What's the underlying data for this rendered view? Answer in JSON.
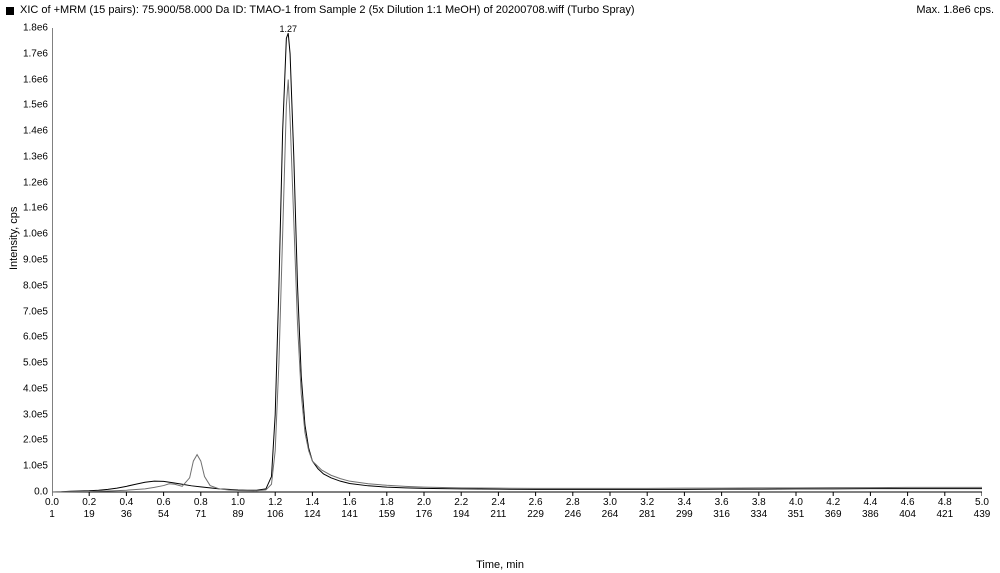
{
  "header": {
    "title": "XIC of +MRM (15 pairs): 75.900/58.000 Da ID: TMAO-1 from Sample 2 (5x Dilution 1:1 MeOH) of 20200708.wiff (Turbo Spray)",
    "max_label": "Max. 1.8e6 cps."
  },
  "axes": {
    "ylabel": "Intensity, cps",
    "xlabel": "Time, min",
    "xlim": [
      0.0,
      5.0
    ],
    "ylim": [
      0,
      1800000.0
    ],
    "yticks": [
      {
        "v": 0,
        "label": "0.0"
      },
      {
        "v": 100000.0,
        "label": "1.0e5"
      },
      {
        "v": 200000.0,
        "label": "2.0e5"
      },
      {
        "v": 300000.0,
        "label": "3.0e5"
      },
      {
        "v": 400000.0,
        "label": "4.0e5"
      },
      {
        "v": 500000.0,
        "label": "5.0e5"
      },
      {
        "v": 600000.0,
        "label": "6.0e5"
      },
      {
        "v": 700000.0,
        "label": "7.0e5"
      },
      {
        "v": 800000.0,
        "label": "8.0e5"
      },
      {
        "v": 900000.0,
        "label": "9.0e5"
      },
      {
        "v": 1000000.0,
        "label": "1.0e6"
      },
      {
        "v": 1100000.0,
        "label": "1.1e6"
      },
      {
        "v": 1200000.0,
        "label": "1.2e6"
      },
      {
        "v": 1300000.0,
        "label": "1.3e6"
      },
      {
        "v": 1400000.0,
        "label": "1.4e6"
      },
      {
        "v": 1500000.0,
        "label": "1.5e6"
      },
      {
        "v": 1600000.0,
        "label": "1.6e6"
      },
      {
        "v": 1700000.0,
        "label": "1.7e6"
      },
      {
        "v": 1800000.0,
        "label": "1.8e6"
      }
    ],
    "xticks": [
      {
        "v": 0.0,
        "top": "0.0",
        "bot": "1"
      },
      {
        "v": 0.2,
        "top": "0.2",
        "bot": "19"
      },
      {
        "v": 0.4,
        "top": "0.4",
        "bot": "36"
      },
      {
        "v": 0.6,
        "top": "0.6",
        "bot": "54"
      },
      {
        "v": 0.8,
        "top": "0.8",
        "bot": "71"
      },
      {
        "v": 1.0,
        "top": "1.0",
        "bot": "89"
      },
      {
        "v": 1.2,
        "top": "1.2",
        "bot": "106"
      },
      {
        "v": 1.4,
        "top": "1.4",
        "bot": "124"
      },
      {
        "v": 1.6,
        "top": "1.6",
        "bot": "141"
      },
      {
        "v": 1.8,
        "top": "1.8",
        "bot": "159"
      },
      {
        "v": 2.0,
        "top": "2.0",
        "bot": "176"
      },
      {
        "v": 2.2,
        "top": "2.2",
        "bot": "194"
      },
      {
        "v": 2.4,
        "top": "2.4",
        "bot": "211"
      },
      {
        "v": 2.6,
        "top": "2.6",
        "bot": "229"
      },
      {
        "v": 2.8,
        "top": "2.8",
        "bot": "246"
      },
      {
        "v": 3.0,
        "top": "3.0",
        "bot": "264"
      },
      {
        "v": 3.2,
        "top": "3.2",
        "bot": "281"
      },
      {
        "v": 3.4,
        "top": "3.4",
        "bot": "299"
      },
      {
        "v": 3.6,
        "top": "3.6",
        "bot": "316"
      },
      {
        "v": 3.8,
        "top": "3.8",
        "bot": "334"
      },
      {
        "v": 4.0,
        "top": "4.0",
        "bot": "351"
      },
      {
        "v": 4.2,
        "top": "4.2",
        "bot": "369"
      },
      {
        "v": 4.4,
        "top": "4.4",
        "bot": "386"
      },
      {
        "v": 4.6,
        "top": "4.6",
        "bot": "404"
      },
      {
        "v": 4.8,
        "top": "4.8",
        "bot": "421"
      },
      {
        "v": 5.0,
        "top": "5.0",
        "bot": "439"
      }
    ]
  },
  "peak_label": {
    "x": 1.27,
    "text": "1.27"
  },
  "chart": {
    "type": "line-chromatogram",
    "background_color": "#ffffff",
    "axis_color": "#000000",
    "tick_fontsize": 10,
    "label_fontsize": 11,
    "line_width": 1,
    "series": [
      {
        "name": "trace-main",
        "color": "#000000",
        "points": [
          [
            0.0,
            0
          ],
          [
            0.05,
            1000
          ],
          [
            0.1,
            3000
          ],
          [
            0.15,
            4000
          ],
          [
            0.2,
            5000
          ],
          [
            0.25,
            7000
          ],
          [
            0.3,
            10000
          ],
          [
            0.35,
            15000
          ],
          [
            0.4,
            22000
          ],
          [
            0.45,
            30000
          ],
          [
            0.5,
            38000
          ],
          [
            0.55,
            42000
          ],
          [
            0.6,
            41000
          ],
          [
            0.65,
            36000
          ],
          [
            0.7,
            30000
          ],
          [
            0.75,
            24000
          ],
          [
            0.8,
            20000
          ],
          [
            0.85,
            16000
          ],
          [
            0.9,
            12000
          ],
          [
            0.95,
            10000
          ],
          [
            1.0,
            8000
          ],
          [
            1.05,
            7000
          ],
          [
            1.1,
            7000
          ],
          [
            1.15,
            12000
          ],
          [
            1.18,
            60000
          ],
          [
            1.2,
            300000
          ],
          [
            1.22,
            800000
          ],
          [
            1.24,
            1400000
          ],
          [
            1.26,
            1760000
          ],
          [
            1.27,
            1780000
          ],
          [
            1.28,
            1700000
          ],
          [
            1.3,
            1300000
          ],
          [
            1.32,
            800000
          ],
          [
            1.34,
            450000
          ],
          [
            1.36,
            260000
          ],
          [
            1.38,
            170000
          ],
          [
            1.4,
            120000
          ],
          [
            1.43,
            90000
          ],
          [
            1.46,
            70000
          ],
          [
            1.5,
            55000
          ],
          [
            1.55,
            42000
          ],
          [
            1.6,
            33000
          ],
          [
            1.7,
            24000
          ],
          [
            1.8,
            19000
          ],
          [
            1.9,
            16000
          ],
          [
            2.0,
            14000
          ],
          [
            2.2,
            12000
          ],
          [
            2.4,
            11000
          ],
          [
            2.6,
            10000
          ],
          [
            2.8,
            10000
          ],
          [
            3.0,
            10000
          ],
          [
            3.2,
            10000
          ],
          [
            3.4,
            10000
          ],
          [
            3.6,
            11000
          ],
          [
            3.8,
            11000
          ],
          [
            4.0,
            12000
          ],
          [
            4.2,
            12000
          ],
          [
            4.4,
            13000
          ],
          [
            4.6,
            13000
          ],
          [
            4.8,
            13000
          ],
          [
            5.0,
            13000
          ]
        ]
      },
      {
        "name": "trace-shoulder",
        "color": "#707070",
        "points": [
          [
            0.0,
            0
          ],
          [
            0.1,
            1000
          ],
          [
            0.2,
            2000
          ],
          [
            0.3,
            4000
          ],
          [
            0.4,
            7000
          ],
          [
            0.5,
            12000
          ],
          [
            0.55,
            18000
          ],
          [
            0.6,
            25000
          ],
          [
            0.63,
            32000
          ],
          [
            0.66,
            30000
          ],
          [
            0.7,
            22000
          ],
          [
            0.74,
            55000
          ],
          [
            0.76,
            120000
          ],
          [
            0.78,
            145000
          ],
          [
            0.8,
            120000
          ],
          [
            0.82,
            60000
          ],
          [
            0.85,
            25000
          ],
          [
            0.9,
            12000
          ],
          [
            0.95,
            8000
          ],
          [
            1.0,
            6000
          ],
          [
            1.1,
            5000
          ],
          [
            1.15,
            8000
          ],
          [
            1.18,
            30000
          ],
          [
            1.2,
            160000
          ],
          [
            1.22,
            500000
          ],
          [
            1.24,
            1000000
          ],
          [
            1.26,
            1500000
          ],
          [
            1.27,
            1600000
          ],
          [
            1.28,
            1450000
          ],
          [
            1.3,
            1050000
          ],
          [
            1.32,
            650000
          ],
          [
            1.34,
            380000
          ],
          [
            1.36,
            230000
          ],
          [
            1.38,
            160000
          ],
          [
            1.4,
            120000
          ],
          [
            1.45,
            85000
          ],
          [
            1.5,
            65000
          ],
          [
            1.55,
            52000
          ],
          [
            1.6,
            42000
          ],
          [
            1.7,
            32000
          ],
          [
            1.8,
            26000
          ],
          [
            1.9,
            22000
          ],
          [
            2.0,
            19000
          ],
          [
            2.2,
            16000
          ],
          [
            2.4,
            15000
          ],
          [
            2.6,
            14000
          ],
          [
            2.8,
            14000
          ],
          [
            3.0,
            14000
          ],
          [
            3.2,
            14000
          ],
          [
            3.4,
            15000
          ],
          [
            3.6,
            15000
          ],
          [
            3.8,
            16000
          ],
          [
            4.0,
            16000
          ],
          [
            4.2,
            17000
          ],
          [
            4.4,
            17000
          ],
          [
            4.6,
            18000
          ],
          [
            4.8,
            18000
          ],
          [
            5.0,
            18000
          ]
        ]
      }
    ]
  }
}
